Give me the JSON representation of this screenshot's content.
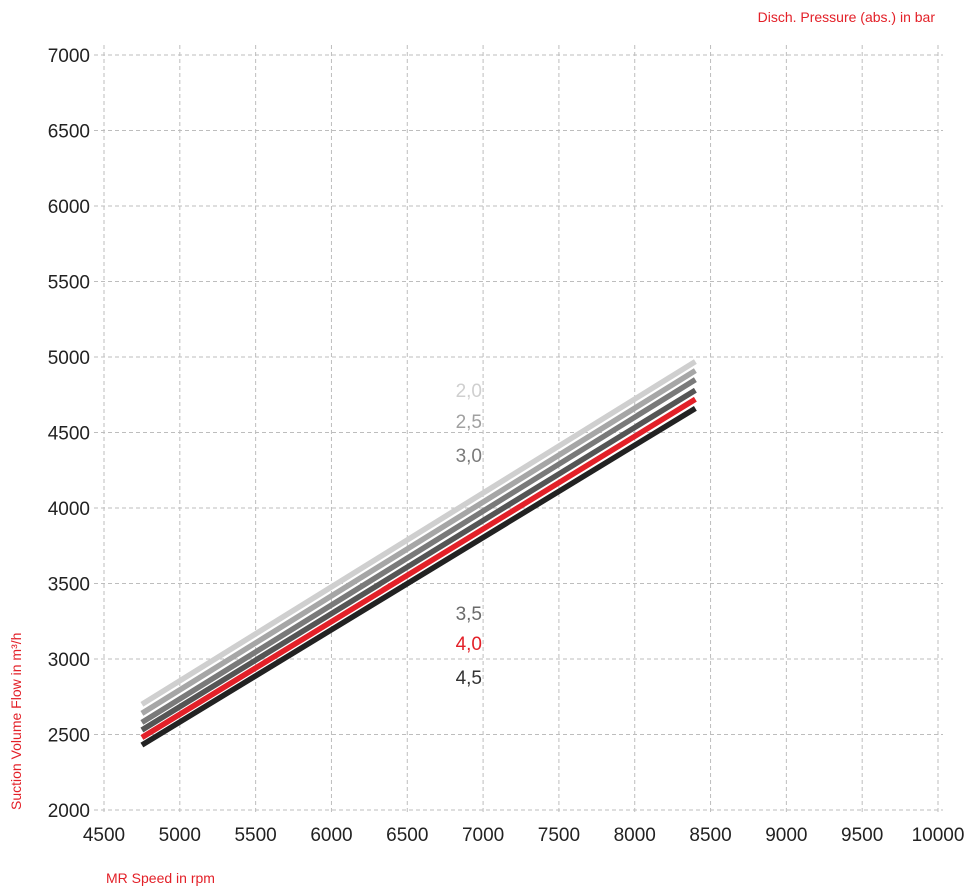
{
  "chart_data": {
    "type": "line",
    "legend_title": "Disch. Pressure (abs.) in bar",
    "xlabel": "MR Speed in rpm",
    "ylabel": "Suction Volume Flow in m³/h",
    "xlim": [
      4500,
      10000
    ],
    "ylim": [
      2000,
      7000
    ],
    "x_ticks": [
      "4500",
      "5000",
      "5500",
      "6000",
      "6500",
      "7000",
      "7500",
      "8000",
      "8500",
      "9000",
      "9500",
      "10000"
    ],
    "y_ticks": [
      "2000",
      "2500",
      "3000",
      "3500",
      "4000",
      "4500",
      "5000",
      "5500",
      "6000",
      "6500",
      "7000"
    ],
    "grid": true,
    "series": [
      {
        "name": "2,0",
        "color": "#cfcfcf",
        "x": [
          4750,
          8400
        ],
        "y": [
          2700,
          4970
        ]
      },
      {
        "name": "2,5",
        "color": "#a6a6a6",
        "x": [
          4750,
          8400
        ],
        "y": [
          2640,
          4910
        ]
      },
      {
        "name": "3,0",
        "color": "#7a7a7a",
        "x": [
          4750,
          8400
        ],
        "y": [
          2580,
          4850
        ]
      },
      {
        "name": "3,5",
        "color": "#555555",
        "x": [
          4750,
          8400
        ],
        "y": [
          2530,
          4780
        ]
      },
      {
        "name": "4,0",
        "color": "#e32028",
        "x": [
          4750,
          8400
        ],
        "y": [
          2480,
          4720
        ]
      },
      {
        "name": "4,5",
        "color": "#222222",
        "x": [
          4750,
          8400
        ],
        "y": [
          2430,
          4660
        ]
      }
    ],
    "label_colors": {
      "2,0": "#cfcfcf",
      "2,5": "#a0a0a0",
      "3,0": "#7a7a7a",
      "3,5": "#6a6a6a",
      "4,0": "#e32028",
      "4,5": "#333333"
    },
    "accent_color": "#e32028"
  }
}
